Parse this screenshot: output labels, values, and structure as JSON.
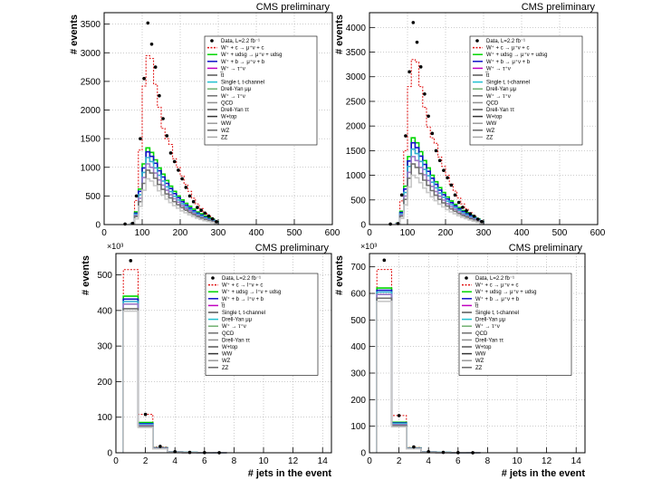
{
  "chart_data": [
    {
      "id": "top-left",
      "type": "histogram",
      "title": "CMS preliminary",
      "xlabel": "",
      "ylabel": "# events",
      "xlim": [
        0,
        600
      ],
      "ylim": [
        0,
        3700
      ],
      "xticks": [
        0,
        100,
        200,
        300,
        400,
        500,
        600
      ],
      "yticks": [
        0,
        500,
        1000,
        1500,
        2000,
        2500,
        3000,
        3500
      ],
      "multiplier": "",
      "bin_edges": [
        70,
        80,
        90,
        100,
        110,
        120,
        130,
        140,
        150,
        160,
        170,
        180,
        190,
        200,
        210,
        220,
        230,
        240,
        250,
        260,
        270,
        280,
        290,
        300
      ],
      "data_x": [
        55,
        75,
        85,
        95,
        105,
        115,
        125,
        135,
        145,
        155,
        165,
        175,
        185,
        195,
        205,
        215,
        225,
        235,
        245,
        255,
        265,
        275,
        285,
        295
      ],
      "data_y": [
        10,
        20,
        500,
        1500,
        2550,
        3520,
        3150,
        2750,
        2250,
        1850,
        1550,
        1250,
        1100,
        950,
        800,
        650,
        500,
        400,
        300,
        250,
        200,
        150,
        100,
        50
      ],
      "series": [
        {
          "name": "W -> e+nu, Wb",
          "values": [
            30,
            420,
            1300,
            2420,
            2950,
            2900,
            2450,
            2050,
            1680,
            1500,
            1400,
            1150,
            1000,
            850,
            700,
            580,
            460,
            360,
            280,
            200,
            150,
            100,
            40
          ]
        },
        {
          "name": "stack top",
          "values": [
            20,
            220,
            620,
            1060,
            1340,
            1260,
            1130,
            990,
            880,
            770,
            670,
            580,
            500,
            430,
            370,
            320,
            270,
            220,
            190,
            150,
            120,
            90,
            50
          ]
        },
        {
          "name": "mid 1",
          "values": [
            18,
            200,
            580,
            990,
            1270,
            1190,
            1070,
            940,
            830,
            720,
            630,
            540,
            470,
            400,
            340,
            290,
            240,
            200,
            165,
            130,
            100,
            75,
            40
          ]
        },
        {
          "name": "mid 2",
          "values": [
            15,
            180,
            520,
            910,
            1170,
            1100,
            990,
            860,
            760,
            660,
            575,
            495,
            430,
            365,
            310,
            265,
            220,
            180,
            150,
            115,
            90,
            65,
            35
          ]
        },
        {
          "name": "mid 3",
          "values": [
            12,
            160,
            460,
            820,
            1060,
            1000,
            900,
            780,
            690,
            600,
            520,
            450,
            390,
            330,
            280,
            240,
            200,
            160,
            130,
            100,
            78,
            55,
            30
          ]
        },
        {
          "name": "mid 4",
          "values": [
            10,
            140,
            400,
            720,
            950,
            900,
            810,
            700,
            615,
            535,
            465,
            400,
            345,
            295,
            250,
            210,
            175,
            140,
            115,
            88,
            68,
            48,
            25
          ]
        },
        {
          "name": "bottom",
          "values": [
            6,
            100,
            320,
            600,
            800,
            760,
            680,
            590,
            515,
            445,
            385,
            330,
            285,
            240,
            205,
            170,
            140,
            112,
            90,
            68,
            52,
            36,
            18
          ]
        }
      ],
      "legend": [
        "Data, L=2.2 fb⁻¹",
        "W⁺ + c → μ⁺ν + c",
        "W⁺ + udsg → μ⁺ν + udsg",
        "W⁺ + b → μ⁺ν + b",
        "W⁺ → τ⁺ν",
        "t̅t",
        "Single t, t-channel",
        "Drell-Yan μμ",
        "W⁺ → τ⁺ν",
        "QCD",
        "Drell-Yan ττ",
        "W+top",
        "WW",
        "WZ",
        "ZZ"
      ]
    },
    {
      "id": "top-right",
      "type": "histogram",
      "title": "CMS preliminary",
      "xlabel": "",
      "ylabel": "# events",
      "xlim": [
        0,
        600
      ],
      "ylim": [
        0,
        4300
      ],
      "xticks": [
        0,
        100,
        200,
        300,
        400,
        500,
        600
      ],
      "yticks": [
        0,
        500,
        1000,
        1500,
        2000,
        2500,
        3000,
        3500,
        4000
      ],
      "multiplier": "",
      "bin_edges": [
        70,
        80,
        90,
        100,
        110,
        120,
        130,
        140,
        150,
        160,
        170,
        180,
        190,
        200,
        210,
        220,
        230,
        240,
        250,
        260,
        270,
        280,
        290,
        300
      ],
      "data_x": [
        55,
        75,
        85,
        95,
        105,
        115,
        125,
        135,
        145,
        155,
        165,
        175,
        185,
        195,
        205,
        215,
        225,
        235,
        245,
        255,
        265,
        275,
        285,
        295
      ],
      "data_y": [
        10,
        20,
        600,
        1800,
        3100,
        4100,
        3700,
        3200,
        2650,
        2200,
        1850,
        1500,
        1300,
        1100,
        950,
        800,
        600,
        450,
        350,
        280,
        220,
        170,
        110,
        60
      ],
      "series": [
        {
          "name": "W -> e+nu, Wb",
          "values": [
            35,
            480,
            1500,
            2800,
            3350,
            3300,
            2800,
            2380,
            1980,
            1760,
            1650,
            1370,
            1180,
            1000,
            820,
            680,
            540,
            420,
            320,
            240,
            180,
            120,
            50
          ]
        },
        {
          "name": "stack top",
          "values": [
            25,
            270,
            780,
            1380,
            1760,
            1660,
            1480,
            1300,
            1150,
            1000,
            870,
            750,
            650,
            560,
            480,
            410,
            345,
            285,
            240,
            195,
            155,
            115,
            60
          ]
        },
        {
          "name": "mid 1",
          "values": [
            22,
            245,
            720,
            1290,
            1660,
            1560,
            1390,
            1220,
            1080,
            940,
            815,
            700,
            605,
            520,
            445,
            380,
            320,
            265,
            220,
            178,
            140,
            100,
            52
          ]
        },
        {
          "name": "mid 2",
          "values": [
            18,
            220,
            650,
            1180,
            1530,
            1440,
            1280,
            1120,
            990,
            860,
            745,
            640,
            555,
            475,
            405,
            345,
            290,
            240,
            198,
            158,
            125,
            88,
            45
          ]
        },
        {
          "name": "mid 3",
          "values": [
            15,
            195,
            580,
            1060,
            1380,
            1300,
            1160,
            1010,
            895,
            775,
            670,
            575,
            498,
            425,
            362,
            308,
            258,
            212,
            175,
            138,
            108,
            76,
            38
          ]
        },
        {
          "name": "mid 4",
          "values": [
            12,
            170,
            510,
            940,
            1230,
            1160,
            1035,
            900,
            795,
            690,
            595,
            510,
            440,
            375,
            318,
            270,
            225,
            185,
            152,
            118,
            92,
            64,
            32
          ]
        },
        {
          "name": "bottom",
          "values": [
            8,
            125,
            400,
            760,
            1000,
            950,
            850,
            740,
            650,
            565,
            485,
            415,
            358,
            305,
            258,
            218,
            180,
            148,
            120,
            92,
            70,
            48,
            24
          ]
        }
      ],
      "legend": [
        "Data, L=2.2 fb⁻¹",
        "W⁺ + c → μ⁺ν + c",
        "W⁺ + udsg → μ⁺ν + udsg",
        "W⁺ + b → μ⁺ν + b",
        "W⁺ → τ⁺ν",
        "t̅t",
        "Single t, t-channel",
        "Drell-Yan μμ",
        "W⁺ → τ⁺ν",
        "QCD",
        "Drell-Yan ττ",
        "W+top",
        "WW",
        "WZ",
        "ZZ"
      ]
    },
    {
      "id": "bottom-left",
      "type": "histogram",
      "title": "CMS preliminary",
      "xlabel": "# jets in the event",
      "ylabel": "# events",
      "xlim": [
        0,
        14.6
      ],
      "ylim": [
        0,
        560
      ],
      "xticks": [
        0,
        2,
        4,
        6,
        8,
        10,
        12,
        14
      ],
      "yticks": [
        0,
        100,
        200,
        300,
        400,
        500
      ],
      "multiplier": "×10³",
      "bin_edges": [
        0.5,
        1.5,
        2.5,
        3.5,
        4.5,
        5.5,
        6.5,
        7.5
      ],
      "data_x": [
        1,
        2,
        3,
        4,
        5,
        6,
        7
      ],
      "data_y": [
        540,
        108,
        18,
        3,
        1,
        0.5,
        0.2
      ],
      "series": [
        {
          "name": "W -> e+nu, Wb",
          "values": [
            515,
            108,
            16,
            3,
            1,
            0.5,
            0.2
          ]
        },
        {
          "name": "stack top",
          "values": [
            440,
            85,
            14,
            2.5,
            0.8,
            0.4,
            0.1
          ]
        },
        {
          "name": "mid 1",
          "values": [
            432,
            82,
            13.5,
            2.3,
            0.7,
            0.3,
            0.1
          ]
        },
        {
          "name": "mid 2",
          "values": [
            425,
            80,
            13,
            2.2,
            0.7,
            0.3,
            0.1
          ]
        },
        {
          "name": "mid 3",
          "values": [
            418,
            77,
            12.5,
            2.1,
            0.6,
            0.3,
            0.1
          ]
        },
        {
          "name": "mid 4",
          "values": [
            405,
            74,
            12,
            2,
            0.6,
            0.3,
            0.1
          ]
        },
        {
          "name": "bottom",
          "values": [
            398,
            71,
            11,
            1.9,
            0.5,
            0.2,
            0.1
          ]
        }
      ],
      "legend": [
        "Data, L=2.2 fb⁻¹",
        "W⁺ + c → l⁺ν + c",
        "W⁺ + udsg → l⁺ν + udsg",
        "W⁺ + b → l⁺ν + b",
        "t̅t",
        "Single t, t-channel",
        "Drell-Yan μμ",
        "W⁺ → τ⁺ν",
        "QCD",
        "Drell-Yan ττ",
        "W+top",
        "WW",
        "WZ",
        "ZZ"
      ]
    },
    {
      "id": "bottom-right",
      "type": "histogram",
      "title": "CMS preliminary",
      "xlabel": "# jets in the event",
      "ylabel": "# events",
      "xlim": [
        0,
        14.6
      ],
      "ylim": [
        0,
        750
      ],
      "xticks": [
        0,
        2,
        4,
        6,
        8,
        10,
        12,
        14
      ],
      "yticks": [
        0,
        100,
        200,
        300,
        400,
        500,
        600,
        700
      ],
      "multiplier": "×10³",
      "bin_edges": [
        0.5,
        1.5,
        2.5,
        3.5,
        4.5,
        5.5,
        6.5,
        7.5
      ],
      "data_x": [
        1,
        2,
        3,
        4,
        5,
        6,
        7
      ],
      "data_y": [
        725,
        140,
        22,
        4,
        1.5,
        0.6,
        0.2
      ],
      "series": [
        {
          "name": "W -> e+nu, Wb",
          "values": [
            690,
            140,
            20,
            4,
            1.3,
            0.6,
            0.2
          ]
        },
        {
          "name": "stack top",
          "values": [
            620,
            115,
            18,
            3.2,
            1,
            0.5,
            0.1
          ]
        },
        {
          "name": "mid 1",
          "values": [
            612,
            112,
            17.5,
            3,
            0.9,
            0.4,
            0.1
          ]
        },
        {
          "name": "mid 2",
          "values": [
            605,
            110,
            17,
            2.9,
            0.9,
            0.4,
            0.1
          ]
        },
        {
          "name": "mid 3",
          "values": [
            596,
            106,
            16.5,
            2.8,
            0.8,
            0.4,
            0.1
          ]
        },
        {
          "name": "mid 4",
          "values": [
            582,
            102,
            16,
            2.6,
            0.8,
            0.3,
            0.1
          ]
        },
        {
          "name": "bottom",
          "values": [
            570,
            98,
            15,
            2.5,
            0.7,
            0.3,
            0.1
          ]
        }
      ],
      "legend": [
        "Data, L=2.2 fb⁻¹",
        "W⁺ + c → μ⁺ν + c",
        "W⁺ + udsg → μ⁺ν + udsg",
        "W⁺ + b → μ⁺ν + b",
        "t̅t",
        "Single t, t-channel",
        "Drell-Yan μμ",
        "W⁺ → τ⁺ν",
        "QCD",
        "Drell-Yan ττ",
        "W+top",
        "WW",
        "WZ",
        "ZZ"
      ]
    }
  ],
  "styles": {
    "series_colors": [
      "#e01010",
      "#00d600",
      "#1010c8",
      "#30b0d0",
      "#9a78c8",
      "#707070",
      "#c8c8c8"
    ],
    "legend_colors": [
      "#000000",
      "#e01010",
      "#00d600",
      "#1010c8",
      "#c000c0",
      "#555555",
      "#20c0d0",
      "#70b070",
      "#707070",
      "#909090",
      "#555555",
      "#333333",
      "#999999",
      "#666666",
      "#aaaaaa"
    ],
    "axis_color": "#000000",
    "grid_color": "#9a9a9a"
  }
}
